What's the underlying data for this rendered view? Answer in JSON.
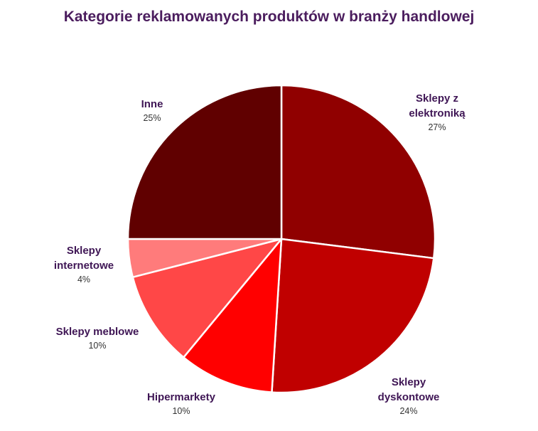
{
  "chart_data": {
    "type": "pie",
    "title": "Kategorie reklamowanych produktów w branży handlowej",
    "categories": [
      "Sklepy z elektroniką",
      "Sklepy dyskontowe",
      "Hipermarkety",
      "Sklepy meblowe",
      "Sklepy internetowe",
      "Inne"
    ],
    "label_lines": [
      [
        "Sklepy z",
        "elektroniką"
      ],
      [
        "Sklepy",
        "dyskontowe"
      ],
      [
        "Hipermarkety"
      ],
      [
        "Sklepy meblowe"
      ],
      [
        "Sklepy",
        "internetowe"
      ],
      [
        "Inne"
      ]
    ],
    "values": [
      27,
      24,
      10,
      10,
      4,
      25
    ],
    "value_labels": [
      "27%",
      "24%",
      "10%",
      "10%",
      "4%",
      "25%"
    ],
    "colors": [
      "#900000",
      "#c00000",
      "#ff0000",
      "#ff4747",
      "#ff7b7b",
      "#600000"
    ],
    "start_angle": "12 o'clock",
    "direction": "clockwise",
    "legend": "none"
  }
}
